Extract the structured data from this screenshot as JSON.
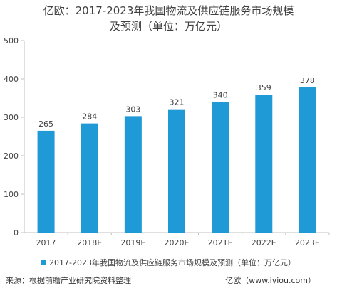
{
  "chart_data": {
    "type": "bar",
    "title_line1": "亿欧：2017-2023年我国物流及供应链服务市场规模",
    "title_line2": "及预测（单位：万亿元）",
    "categories": [
      "2017",
      "2018E",
      "2019E",
      "2020E",
      "2021E",
      "2022E",
      "2023E"
    ],
    "series": [
      {
        "name": "2017-2023年我国物流及供应链服务市场规模及预测（单位：万亿元）",
        "values": [
          265,
          284,
          303,
          321,
          340,
          359,
          378
        ]
      }
    ],
    "data_labels": [
      "265",
      "284",
      "303",
      "321",
      "340",
      "359",
      "378"
    ],
    "y_ticks": [
      "0",
      "100",
      "200",
      "300",
      "400",
      "500"
    ],
    "ylim": [
      0,
      500
    ],
    "grid": false,
    "legend_position": "bottom",
    "bar_color": "#1f9ad6"
  },
  "footer": {
    "source": "来源：根据前瞻产业研究院资料整理",
    "site": "亿欧（www.iyiou.com）"
  }
}
